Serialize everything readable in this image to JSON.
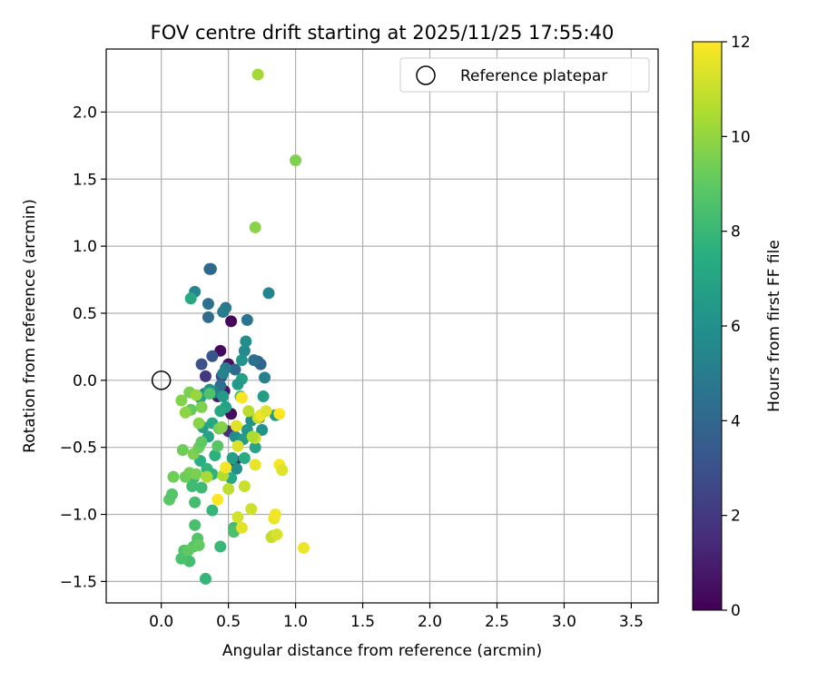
{
  "chart_data": {
    "type": "scatter",
    "title": "FOV centre drift starting at 2025/11/25 17:55:40",
    "xlabel": "Angular distance from reference (arcmin)",
    "ylabel": "Rotation from reference (arcmin)",
    "xlim": [
      -0.41,
      3.7
    ],
    "ylim": [
      -1.66,
      2.47
    ],
    "xticks": [
      0.0,
      0.5,
      1.0,
      1.5,
      2.0,
      2.5,
      3.0,
      3.5
    ],
    "xtick_labels": [
      "0.0",
      "0.5",
      "1.0",
      "1.5",
      "2.0",
      "2.5",
      "3.0",
      "3.5"
    ],
    "yticks": [
      -1.5,
      -1.0,
      -0.5,
      0.0,
      0.5,
      1.0,
      1.5,
      2.0
    ],
    "ytick_labels": [
      "−1.5",
      "−1.0",
      "−0.5",
      "0.0",
      "0.5",
      "1.0",
      "1.5",
      "2.0"
    ],
    "grid": true,
    "legend": {
      "position": "top-right",
      "entries": [
        "Reference platepar"
      ]
    },
    "reference_point": {
      "x": 0.0,
      "y": 0.0,
      "label": "Reference platepar"
    },
    "colorbar": {
      "label": "Hours from first FF file",
      "colormap": "viridis",
      "range": [
        0,
        12
      ],
      "ticks": [
        0,
        2,
        4,
        6,
        8,
        10,
        12
      ],
      "tick_labels": [
        "0",
        "2",
        "4",
        "6",
        "8",
        "10",
        "12"
      ]
    },
    "points": [
      {
        "x": 0.52,
        "y": 0.44,
        "h": 0.2
      },
      {
        "x": 0.44,
        "y": 0.22,
        "h": 0.3
      },
      {
        "x": 0.5,
        "y": 0.12,
        "h": 0.5
      },
      {
        "x": 0.52,
        "y": -0.25,
        "h": 0.4
      },
      {
        "x": 0.42,
        "y": -0.12,
        "h": 1.0
      },
      {
        "x": 0.47,
        "y": -0.08,
        "h": 0.8
      },
      {
        "x": 0.55,
        "y": -0.6,
        "h": 1.2
      },
      {
        "x": 0.33,
        "y": 0.03,
        "h": 2.0
      },
      {
        "x": 0.45,
        "y": 0.03,
        "h": 2.5
      },
      {
        "x": 0.5,
        "y": -0.38,
        "h": 1.5
      },
      {
        "x": 0.3,
        "y": 0.12,
        "h": 3.0
      },
      {
        "x": 0.38,
        "y": 0.18,
        "h": 3.2
      },
      {
        "x": 0.36,
        "y": 0.83,
        "h": 3.8
      },
      {
        "x": 0.37,
        "y": 0.83,
        "h": 4.0
      },
      {
        "x": 0.35,
        "y": 0.47,
        "h": 4.2
      },
      {
        "x": 0.35,
        "y": 0.57,
        "h": 4.5
      },
      {
        "x": 0.48,
        "y": 0.54,
        "h": 4.8
      },
      {
        "x": 0.46,
        "y": 0.51,
        "h": 5.0
      },
      {
        "x": 0.25,
        "y": 0.66,
        "h": 5.5
      },
      {
        "x": 0.64,
        "y": 0.45,
        "h": 4.6
      },
      {
        "x": 0.72,
        "y": 0.14,
        "h": 3.6
      },
      {
        "x": 0.74,
        "y": 0.12,
        "h": 3.9
      },
      {
        "x": 0.69,
        "y": 0.15,
        "h": 4.4
      },
      {
        "x": 0.55,
        "y": 0.08,
        "h": 4.1
      },
      {
        "x": 0.48,
        "y": 0.09,
        "h": 5.0
      },
      {
        "x": 0.46,
        "y": 0.05,
        "h": 5.3
      },
      {
        "x": 0.44,
        "y": -0.04,
        "h": 4.3
      },
      {
        "x": 0.4,
        "y": -0.09,
        "h": 5.1
      },
      {
        "x": 0.32,
        "y": -0.1,
        "h": 5.8
      },
      {
        "x": 0.36,
        "y": -0.07,
        "h": 6.2
      },
      {
        "x": 0.62,
        "y": 0.22,
        "h": 5.6
      },
      {
        "x": 0.63,
        "y": 0.29,
        "h": 5.9
      },
      {
        "x": 0.6,
        "y": 0.15,
        "h": 6.2
      },
      {
        "x": 0.6,
        "y": 0.01,
        "h": 6.8
      },
      {
        "x": 0.57,
        "y": -0.03,
        "h": 6.4
      },
      {
        "x": 0.77,
        "y": 0.02,
        "h": 5.2
      },
      {
        "x": 0.8,
        "y": 0.65,
        "h": 5.4
      },
      {
        "x": 0.76,
        "y": -0.12,
        "h": 6.6
      },
      {
        "x": 0.67,
        "y": -0.3,
        "h": 6.0
      },
      {
        "x": 0.73,
        "y": -0.28,
        "h": 5.7
      },
      {
        "x": 0.64,
        "y": -0.37,
        "h": 6.3
      },
      {
        "x": 0.55,
        "y": -0.42,
        "h": 5.8
      },
      {
        "x": 0.61,
        "y": -0.44,
        "h": 6.5
      },
      {
        "x": 0.75,
        "y": -0.37,
        "h": 6.1
      },
      {
        "x": 0.7,
        "y": -0.5,
        "h": 7.0
      },
      {
        "x": 0.85,
        "y": -0.26,
        "h": 6.4
      },
      {
        "x": 0.56,
        "y": -0.66,
        "h": 5.9
      },
      {
        "x": 0.53,
        "y": -0.58,
        "h": 6.7
      },
      {
        "x": 0.48,
        "y": -0.2,
        "h": 6.9
      },
      {
        "x": 0.44,
        "y": -0.23,
        "h": 7.1
      },
      {
        "x": 0.46,
        "y": -0.12,
        "h": 6.6
      },
      {
        "x": 0.29,
        "y": -0.13,
        "h": 7.0
      },
      {
        "x": 0.31,
        "y": -0.35,
        "h": 6.8
      },
      {
        "x": 0.38,
        "y": -0.32,
        "h": 7.2
      },
      {
        "x": 0.35,
        "y": -0.42,
        "h": 6.9
      },
      {
        "x": 0.62,
        "y": -0.58,
        "h": 7.4
      },
      {
        "x": 0.52,
        "y": -0.73,
        "h": 7.3
      },
      {
        "x": 0.4,
        "y": -0.56,
        "h": 7.6
      },
      {
        "x": 0.29,
        "y": -0.6,
        "h": 7.5
      },
      {
        "x": 0.34,
        "y": -0.66,
        "h": 7.8
      },
      {
        "x": 0.38,
        "y": -0.7,
        "h": 7.7
      },
      {
        "x": 0.24,
        "y": -0.73,
        "h": 8.0
      },
      {
        "x": 0.23,
        "y": -0.79,
        "h": 8.2
      },
      {
        "x": 0.38,
        "y": -0.97,
        "h": 7.9
      },
      {
        "x": 0.3,
        "y": -0.8,
        "h": 8.1
      },
      {
        "x": 0.25,
        "y": -0.91,
        "h": 8.3
      },
      {
        "x": 0.25,
        "y": -1.08,
        "h": 8.4
      },
      {
        "x": 0.33,
        "y": -1.48,
        "h": 7.9
      },
      {
        "x": 0.44,
        "y": -1.24,
        "h": 8.0
      },
      {
        "x": 0.21,
        "y": -1.35,
        "h": 8.3
      },
      {
        "x": 0.15,
        "y": -1.33,
        "h": 8.5
      },
      {
        "x": 0.17,
        "y": -1.27,
        "h": 8.6
      },
      {
        "x": 0.27,
        "y": -1.18,
        "h": 8.7
      },
      {
        "x": 0.24,
        "y": -1.24,
        "h": 8.8
      },
      {
        "x": 0.2,
        "y": -1.27,
        "h": 9.0
      },
      {
        "x": 0.28,
        "y": -1.23,
        "h": 9.1
      },
      {
        "x": 0.54,
        "y": -1.1,
        "h": 8.2
      },
      {
        "x": 0.54,
        "y": -1.13,
        "h": 8.5
      },
      {
        "x": 0.06,
        "y": -0.89,
        "h": 8.9
      },
      {
        "x": 0.08,
        "y": -0.85,
        "h": 8.7
      },
      {
        "x": 0.09,
        "y": -0.72,
        "h": 9.3
      },
      {
        "x": 0.18,
        "y": -0.72,
        "h": 9.2
      },
      {
        "x": 0.21,
        "y": -0.69,
        "h": 9.4
      },
      {
        "x": 0.26,
        "y": -0.7,
        "h": 9.5
      },
      {
        "x": 0.16,
        "y": -0.52,
        "h": 9.3
      },
      {
        "x": 0.24,
        "y": -0.55,
        "h": 9.6
      },
      {
        "x": 0.28,
        "y": -0.5,
        "h": 9.2
      },
      {
        "x": 0.3,
        "y": -0.46,
        "h": 9.0
      },
      {
        "x": 0.42,
        "y": -0.49,
        "h": 8.8
      },
      {
        "x": 0.43,
        "y": -0.36,
        "h": 9.4
      },
      {
        "x": 0.45,
        "y": -0.35,
        "h": 9.7
      },
      {
        "x": 0.28,
        "y": -0.32,
        "h": 9.8
      },
      {
        "x": 0.3,
        "y": -0.2,
        "h": 9.6
      },
      {
        "x": 0.22,
        "y": -0.22,
        "h": 9.1
      },
      {
        "x": 0.18,
        "y": -0.24,
        "h": 9.9
      },
      {
        "x": 0.15,
        "y": -0.15,
        "h": 9.7
      },
      {
        "x": 0.21,
        "y": -0.09,
        "h": 9.5
      },
      {
        "x": 0.26,
        "y": -0.11,
        "h": 10.1
      },
      {
        "x": 0.36,
        "y": -0.1,
        "h": 8.6
      },
      {
        "x": 0.59,
        "y": -0.12,
        "h": 8.4
      },
      {
        "x": 0.22,
        "y": 0.61,
        "h": 7.2
      },
      {
        "x": 0.72,
        "y": 2.28,
        "h": 10.3
      },
      {
        "x": 1.0,
        "y": 1.64,
        "h": 9.6
      },
      {
        "x": 0.7,
        "y": 1.14,
        "h": 9.8
      },
      {
        "x": 0.34,
        "y": -0.72,
        "h": 10.4
      },
      {
        "x": 0.46,
        "y": -0.71,
        "h": 10.6
      },
      {
        "x": 0.5,
        "y": -0.81,
        "h": 10.8
      },
      {
        "x": 0.62,
        "y": -0.79,
        "h": 11.0
      },
      {
        "x": 0.67,
        "y": -0.96,
        "h": 11.1
      },
      {
        "x": 0.57,
        "y": -1.02,
        "h": 11.2
      },
      {
        "x": 0.6,
        "y": -1.1,
        "h": 11.5
      },
      {
        "x": 0.82,
        "y": -1.17,
        "h": 11.0
      },
      {
        "x": 0.83,
        "y": -1.16,
        "h": 10.9
      },
      {
        "x": 0.86,
        "y": -1.15,
        "h": 11.3
      },
      {
        "x": 0.84,
        "y": -1.03,
        "h": 11.6
      },
      {
        "x": 0.85,
        "y": -1.0,
        "h": 11.8
      },
      {
        "x": 1.06,
        "y": -1.25,
        "h": 11.7
      },
      {
        "x": 0.88,
        "y": -0.63,
        "h": 11.9
      },
      {
        "x": 0.9,
        "y": -0.67,
        "h": 11.4
      },
      {
        "x": 0.7,
        "y": -0.63,
        "h": 11.6
      },
      {
        "x": 0.48,
        "y": -0.65,
        "h": 11.8
      },
      {
        "x": 0.42,
        "y": -0.89,
        "h": 12.0
      },
      {
        "x": 0.57,
        "y": -0.49,
        "h": 11.3
      },
      {
        "x": 0.56,
        "y": -0.34,
        "h": 11.5
      },
      {
        "x": 0.7,
        "y": -0.43,
        "h": 11.2
      },
      {
        "x": 0.72,
        "y": -0.28,
        "h": 11.0
      },
      {
        "x": 0.74,
        "y": -0.26,
        "h": 11.7
      },
      {
        "x": 0.78,
        "y": -0.23,
        "h": 11.4
      },
      {
        "x": 0.88,
        "y": -0.25,
        "h": 12.0
      },
      {
        "x": 0.6,
        "y": -0.13,
        "h": 11.9
      },
      {
        "x": 0.65,
        "y": -0.23,
        "h": 10.7
      },
      {
        "x": 0.68,
        "y": -0.42,
        "h": 10.5
      }
    ]
  }
}
